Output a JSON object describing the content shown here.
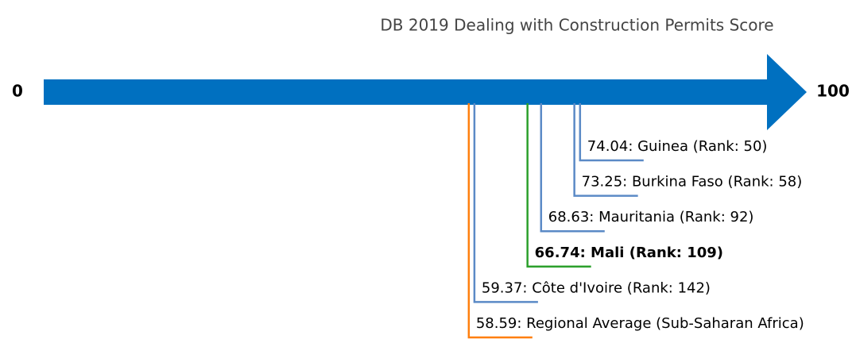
{
  "chart_data": {
    "type": "number_line",
    "title": "DB 2019 Dealing with Construction Permits Score",
    "xlim": [
      0,
      100
    ],
    "xticks": [
      0,
      100
    ],
    "axis_color": "#0070c0",
    "values": [
      74.04,
      73.25,
      68.63,
      66.74,
      59.37,
      58.59
    ],
    "value_labels": [
      "74.04: Guinea (Rank: 50)",
      "73.25: Burkina Faso (Rank: 58)",
      "68.63: Mauritania (Rank: 92)",
      "66.74: Mali (Rank: 109)",
      "59.37: Côte d'Ivoire (Rank: 142)",
      "58.59: Regional Average (Sub-Saharan Africa)"
    ],
    "colors": [
      "#5b8ac6",
      "#5b8ac6",
      "#5b8ac6",
      "#2ca02c",
      "#5b8ac6",
      "#ff7f0e"
    ],
    "font_weights": [
      "normal",
      "normal",
      "normal",
      "bold",
      "normal",
      "normal"
    ]
  }
}
